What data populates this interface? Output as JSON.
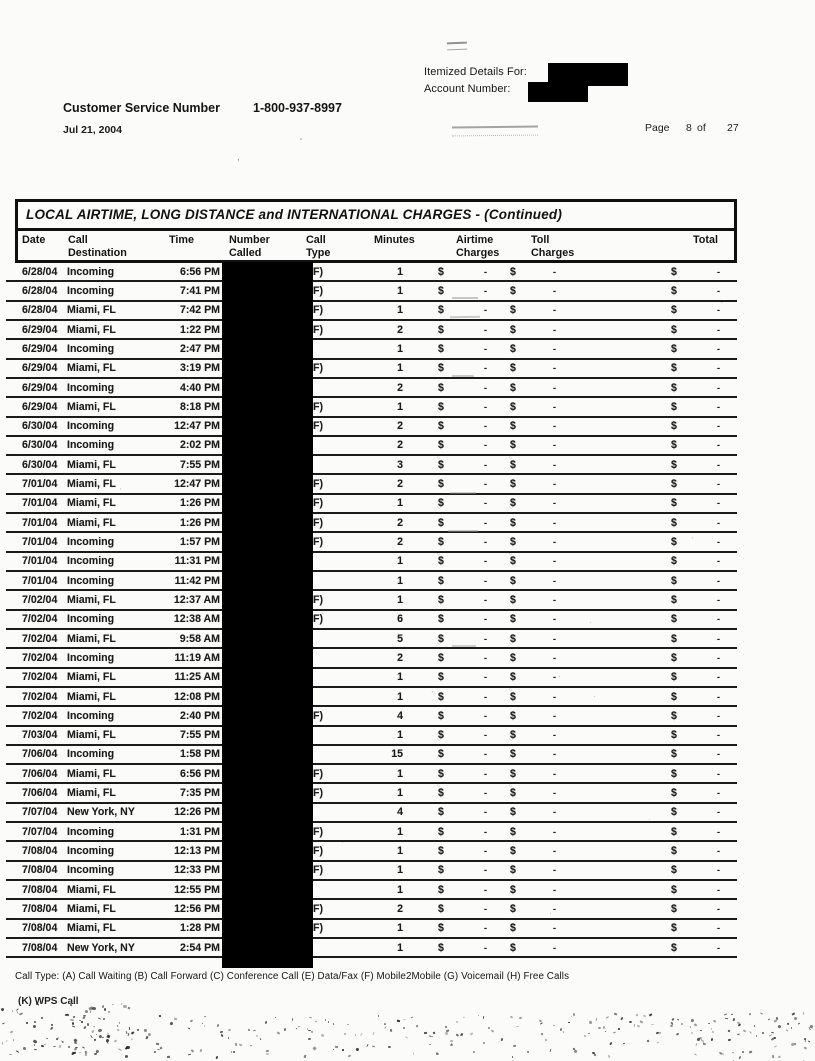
{
  "colors": {
    "ink": "#1a1a1a",
    "paper": "#fbfbf9",
    "redaction": "#000000",
    "row_line": "#1b1b1b"
  },
  "header": {
    "itemized_label": "Itemized Details For:",
    "account_label": "Account Number:",
    "customer_service_label": "Customer Service Number",
    "customer_service_number": "1-800-937-8997",
    "statement_date": "Jul 21, 2004",
    "page_label": "Page",
    "page_current": "8",
    "page_of": "of",
    "page_total": "27"
  },
  "table": {
    "title": "LOCAL AIRTIME, LONG DISTANCE and INTERNATIONAL CHARGES  - (Continued)",
    "columns": {
      "date": [
        "Date"
      ],
      "destination": [
        "Call",
        "Destination"
      ],
      "time": [
        "Time"
      ],
      "number_called": [
        "Number",
        "Called"
      ],
      "call_type": [
        "Call",
        "Type"
      ],
      "minutes": [
        "Minutes"
      ],
      "airtime": [
        "Airtime",
        "Charges"
      ],
      "toll": [
        "Toll",
        "Charges"
      ],
      "total": [
        "Total"
      ]
    },
    "charge_display": {
      "currency_symbol": "$",
      "empty_amount": "-"
    }
  },
  "rows": [
    {
      "date": "6/28/04",
      "destination": "Incoming",
      "time": "6:56 PM",
      "call_type": "F)",
      "minutes": "1"
    },
    {
      "date": "6/28/04",
      "destination": "Incoming",
      "time": "7:41 PM",
      "call_type": "F)",
      "minutes": "1"
    },
    {
      "date": "6/28/04",
      "destination": "Miami, FL",
      "time": "7:42 PM",
      "call_type": "F)",
      "minutes": "1"
    },
    {
      "date": "6/29/04",
      "destination": "Miami, FL",
      "time": "1:22 PM",
      "call_type": "F)",
      "minutes": "2"
    },
    {
      "date": "6/29/04",
      "destination": "Incoming",
      "time": "2:47 PM",
      "call_type": "",
      "minutes": "1"
    },
    {
      "date": "6/29/04",
      "destination": "Miami, FL",
      "time": "3:19 PM",
      "call_type": "F)",
      "minutes": "1"
    },
    {
      "date": "6/29/04",
      "destination": "Incoming",
      "time": "4:40 PM",
      "call_type": "",
      "minutes": "2"
    },
    {
      "date": "6/29/04",
      "destination": "Miami, FL",
      "time": "8:18 PM",
      "call_type": "F)",
      "minutes": "1"
    },
    {
      "date": "6/30/04",
      "destination": "Incoming",
      "time": "12:47 PM",
      "call_type": "F)",
      "minutes": "2"
    },
    {
      "date": "6/30/04",
      "destination": "Incoming",
      "time": "2:02 PM",
      "call_type": "",
      "minutes": "2"
    },
    {
      "date": "6/30/04",
      "destination": "Miami, FL",
      "time": "7:55 PM",
      "call_type": "",
      "minutes": "3"
    },
    {
      "date": "7/01/04",
      "destination": "Miami, FL",
      "time": "12:47 PM",
      "call_type": "F)",
      "minutes": "2"
    },
    {
      "date": "7/01/04",
      "destination": "Miami, FL",
      "time": "1:26 PM",
      "call_type": "F)",
      "minutes": "1"
    },
    {
      "date": "7/01/04",
      "destination": "Miami, FL",
      "time": "1:26 PM",
      "call_type": "F)",
      "minutes": "2"
    },
    {
      "date": "7/01/04",
      "destination": "Incoming",
      "time": "1:57 PM",
      "call_type": "F)",
      "minutes": "2"
    },
    {
      "date": "7/01/04",
      "destination": "Incoming",
      "time": "11:31 PM",
      "call_type": "",
      "minutes": "1"
    },
    {
      "date": "7/01/04",
      "destination": "Incoming",
      "time": "11:42 PM",
      "call_type": "",
      "minutes": "1"
    },
    {
      "date": "7/02/04",
      "destination": "Miami, FL",
      "time": "12:37 AM",
      "call_type": "F)",
      "minutes": "1"
    },
    {
      "date": "7/02/04",
      "destination": "Incoming",
      "time": "12:38 AM",
      "call_type": "F)",
      "minutes": "6"
    },
    {
      "date": "7/02/04",
      "destination": "Miami, FL",
      "time": "9:58 AM",
      "call_type": "",
      "minutes": "5"
    },
    {
      "date": "7/02/04",
      "destination": "Incoming",
      "time": "11:19 AM",
      "call_type": "",
      "minutes": "2"
    },
    {
      "date": "7/02/04",
      "destination": "Miami, FL",
      "time": "11:25 AM",
      "call_type": "",
      "minutes": "1"
    },
    {
      "date": "7/02/04",
      "destination": "Miami, FL",
      "time": "12:08 PM",
      "call_type": "",
      "minutes": "1"
    },
    {
      "date": "7/02/04",
      "destination": "Incoming",
      "time": "2:40 PM",
      "call_type": "F)",
      "minutes": "4"
    },
    {
      "date": "7/03/04",
      "destination": "Miami, FL",
      "time": "7:55 PM",
      "call_type": "",
      "minutes": "1"
    },
    {
      "date": "7/06/04",
      "destination": "Incoming",
      "time": "1:58 PM",
      "call_type": "",
      "minutes": "15"
    },
    {
      "date": "7/06/04",
      "destination": "Miami, FL",
      "time": "6:56 PM",
      "call_type": "F)",
      "minutes": "1"
    },
    {
      "date": "7/06/04",
      "destination": "Miami, FL",
      "time": "7:35 PM",
      "call_type": "F)",
      "minutes": "1"
    },
    {
      "date": "7/07/04",
      "destination": "New York, NY",
      "time": "12:26 PM",
      "call_type": "",
      "minutes": "4"
    },
    {
      "date": "7/07/04",
      "destination": "Incoming",
      "time": "1:31 PM",
      "call_type": "F)",
      "minutes": "1"
    },
    {
      "date": "7/08/04",
      "destination": "Incoming",
      "time": "12:13 PM",
      "call_type": "F)",
      "minutes": "1"
    },
    {
      "date": "7/08/04",
      "destination": "Incoming",
      "time": "12:33 PM",
      "call_type": "F)",
      "minutes": "1"
    },
    {
      "date": "7/08/04",
      "destination": "Miami, FL",
      "time": "12:55 PM",
      "call_type": "",
      "minutes": "1"
    },
    {
      "date": "7/08/04",
      "destination": "Miami, FL",
      "time": "12:56 PM",
      "call_type": "F)",
      "minutes": "2"
    },
    {
      "date": "7/08/04",
      "destination": "Miami, FL",
      "time": "1:28 PM",
      "call_type": "F)",
      "minutes": "1"
    },
    {
      "date": "7/08/04",
      "destination": "New York, NY",
      "time": "2:54 PM",
      "call_type": "",
      "minutes": "1"
    }
  ],
  "footer": {
    "call_type_legend": "Call Type: (A) Call Waiting (B) Call Forward (C) Conference Call (E) Data/Fax (F) Mobile2Mobile (G) Voicemail (H) Free Calls",
    "wps_note": "(K) WPS Call"
  }
}
